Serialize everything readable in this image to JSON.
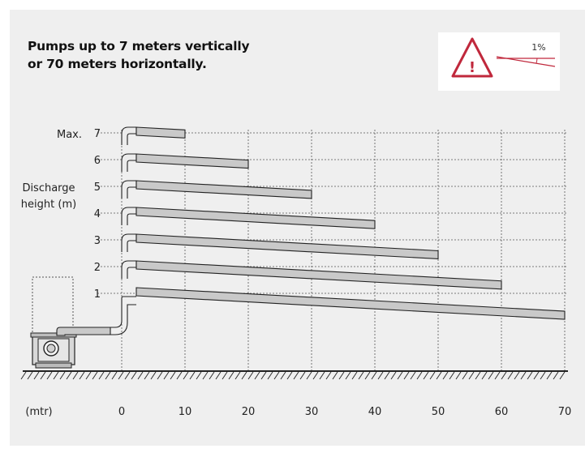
{
  "title": {
    "line1": "Pumps up to 7 meters vertically",
    "line2": "or 70 meters horizontally."
  },
  "warning": {
    "symbol": "!",
    "slope_label": "1%",
    "icon": "warning-triangle-icon",
    "color": "#c0283c"
  },
  "y_axis": {
    "max_label": "Max.",
    "label_line1": "Discharge",
    "label_line2": "height (m)",
    "ticks": [
      "7",
      "6",
      "5",
      "4",
      "3",
      "2",
      "1"
    ]
  },
  "x_axis": {
    "unit_label": "(mtr)",
    "ticks": [
      "0",
      "10",
      "20",
      "30",
      "40",
      "50",
      "60",
      "70"
    ]
  },
  "pipes": [
    {
      "height_m": 7,
      "length_m": 10
    },
    {
      "height_m": 6,
      "length_m": 20
    },
    {
      "height_m": 5,
      "length_m": 30
    },
    {
      "height_m": 4,
      "length_m": 40
    },
    {
      "height_m": 3,
      "length_m": 50
    },
    {
      "height_m": 2,
      "length_m": 60
    },
    {
      "height_m": 1,
      "length_m": 70
    }
  ],
  "colors": {
    "background": "#efefef",
    "pipe_fill": "#c9c9c9",
    "accent": "#c0283c"
  }
}
